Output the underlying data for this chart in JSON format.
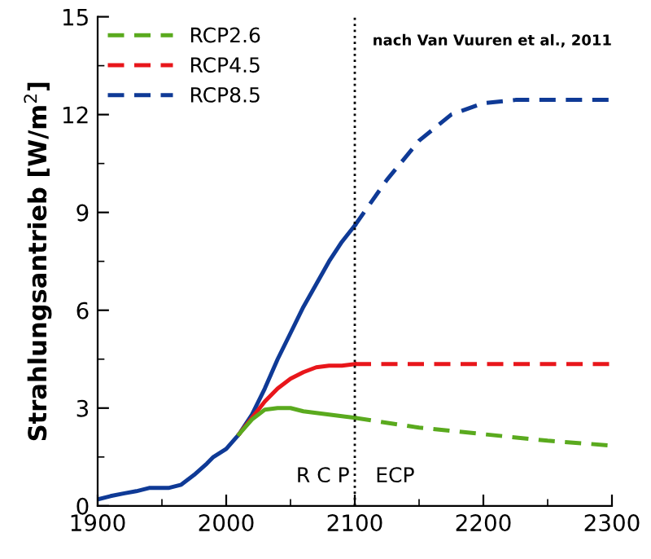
{
  "chart_data": {
    "type": "line",
    "ylabel": "Strahlungsantrieb [W/m$^{2}$]",
    "xlim": [
      1900,
      2300
    ],
    "xticks": [
      1900,
      2000,
      2100,
      2200,
      2300
    ],
    "ylim": [
      0,
      15
    ],
    "yticks": [
      0,
      3,
      6,
      9,
      12,
      15
    ],
    "grid": false,
    "legend": "top left",
    "series": [
      {
        "color": "#0f3a96",
        "line_style": "solid",
        "x": [
          1900,
          1910,
          1920,
          1930,
          1940,
          1955,
          1965,
          1975,
          1985,
          1990,
          2000,
          2010,
          2020,
          2030,
          2040,
          2050,
          2060,
          2070,
          2080,
          2090,
          2100
        ],
        "values": [
          0.2,
          0.3,
          0.38,
          0.45,
          0.55,
          0.55,
          0.65,
          0.95,
          1.3,
          1.5,
          1.75,
          2.2,
          2.8,
          3.6,
          4.5,
          5.3,
          6.1,
          6.8,
          7.5,
          8.1,
          8.6
        ]
      },
      {
        "color": "#e8161b",
        "line_style": "solid",
        "x": [
          2010,
          2020,
          2030,
          2040,
          2050,
          2060,
          2070,
          2080,
          2090,
          2100
        ],
        "values": [
          2.2,
          2.7,
          3.2,
          3.6,
          3.9,
          4.1,
          4.25,
          4.3,
          4.3,
          4.35
        ]
      },
      {
        "color": "#5aaa1e",
        "line_style": "solid",
        "x": [
          2010,
          2020,
          2030,
          2040,
          2050,
          2060,
          2070,
          2080,
          2090,
          2100
        ],
        "values": [
          2.2,
          2.65,
          2.95,
          3.0,
          3.0,
          2.9,
          2.85,
          2.8,
          2.75,
          2.7
        ]
      },
      {
        "name": "RCP2.6",
        "color": "#5aaa1e",
        "line_style": "dashed",
        "x": [
          2100,
          2150,
          2200,
          2250,
          2300
        ],
        "values": [
          2.7,
          2.4,
          2.2,
          2.0,
          1.85
        ]
      },
      {
        "name": "RCP4.5",
        "color": "#e8161b",
        "line_style": "dashed",
        "x": [
          2100,
          2150,
          2200,
          2250,
          2300
        ],
        "values": [
          4.35,
          4.35,
          4.35,
          4.35,
          4.35
        ]
      },
      {
        "name": "RCP8.5",
        "color": "#0f3a96",
        "line_style": "dashed",
        "x": [
          2100,
          2125,
          2150,
          2175,
          2200,
          2225,
          2250,
          2300
        ],
        "values": [
          8.6,
          10.0,
          11.2,
          12.0,
          12.35,
          12.45,
          12.45,
          12.45
        ]
      }
    ],
    "ref_lines": [
      {
        "axis": "x",
        "value": 2100,
        "color": "#000000",
        "line_style": "dotted"
      }
    ],
    "annotations": [
      "nach Van Vuuren et al., 2011",
      "R C P",
      "ECP"
    ]
  }
}
